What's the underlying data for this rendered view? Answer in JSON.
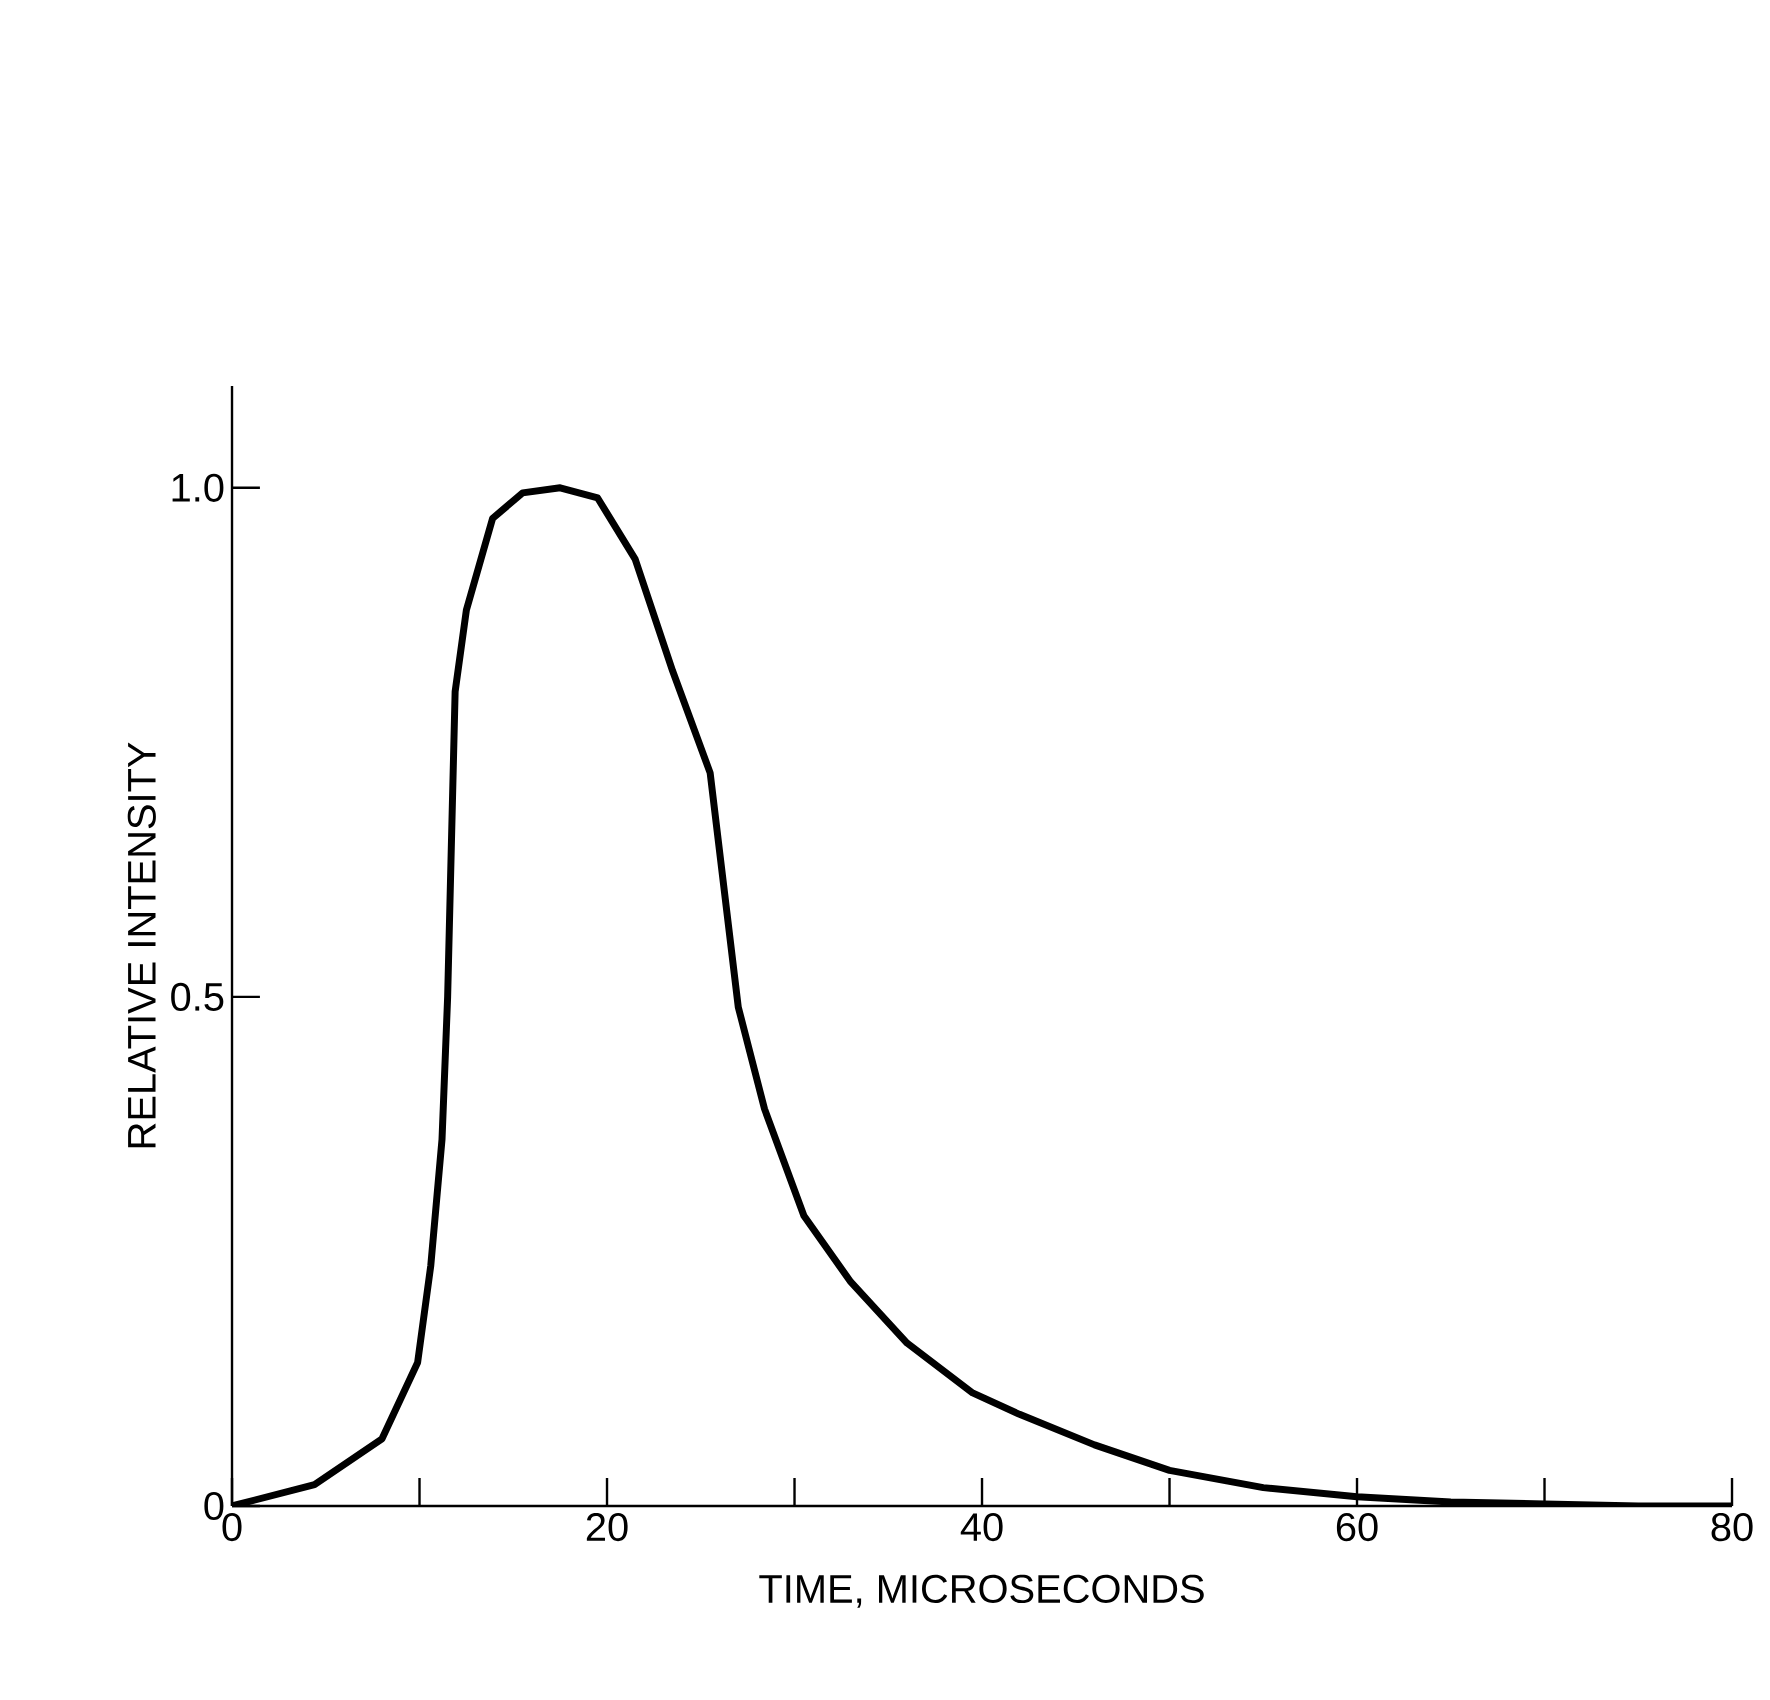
{
  "chart_data": {
    "type": "line",
    "xlabel": "TIME,    MICROSECONDS",
    "ylabel": "RELATIVE INTENSITY",
    "x": [
      0,
      4.4,
      8.0,
      9.9,
      10.6,
      11.2,
      11.5,
      11.9,
      12.5,
      13.9,
      15.5,
      17.5,
      19.5,
      21.5,
      23.5,
      25.5,
      27.0,
      28.4,
      30.5,
      33.0,
      36.0,
      39.5,
      42.0,
      46.0,
      50.0,
      55.0,
      60.0,
      65.0,
      70.0,
      75.0,
      80.0
    ],
    "series": [
      {
        "color": "#000000",
        "values": [
          0,
          0.021,
          0.066,
          0.141,
          0.236,
          0.36,
          0.5,
          0.8,
          0.88,
          0.97,
          0.995,
          1.0,
          0.99,
          0.93,
          0.82,
          0.72,
          0.49,
          0.39,
          0.285,
          0.22,
          0.16,
          0.111,
          0.09,
          0.06,
          0.035,
          0.018,
          0.009,
          0.004,
          0.002,
          0.0,
          0.0
        ]
      }
    ],
    "xlim": [
      0,
      80
    ],
    "ylim": [
      0,
      1.1
    ],
    "xticks": [
      0,
      {
        "value": 10,
        "label": null
      },
      20,
      {
        "value": 30,
        "label": null
      },
      40,
      {
        "value": 50,
        "label": null
      },
      60,
      {
        "value": 70,
        "label": null
      },
      80
    ],
    "yticks": [
      0,
      0.5,
      {
        "value": 1,
        "label": "1.0"
      }
    ],
    "grid": false,
    "marker": "none",
    "line_style": "solid"
  }
}
